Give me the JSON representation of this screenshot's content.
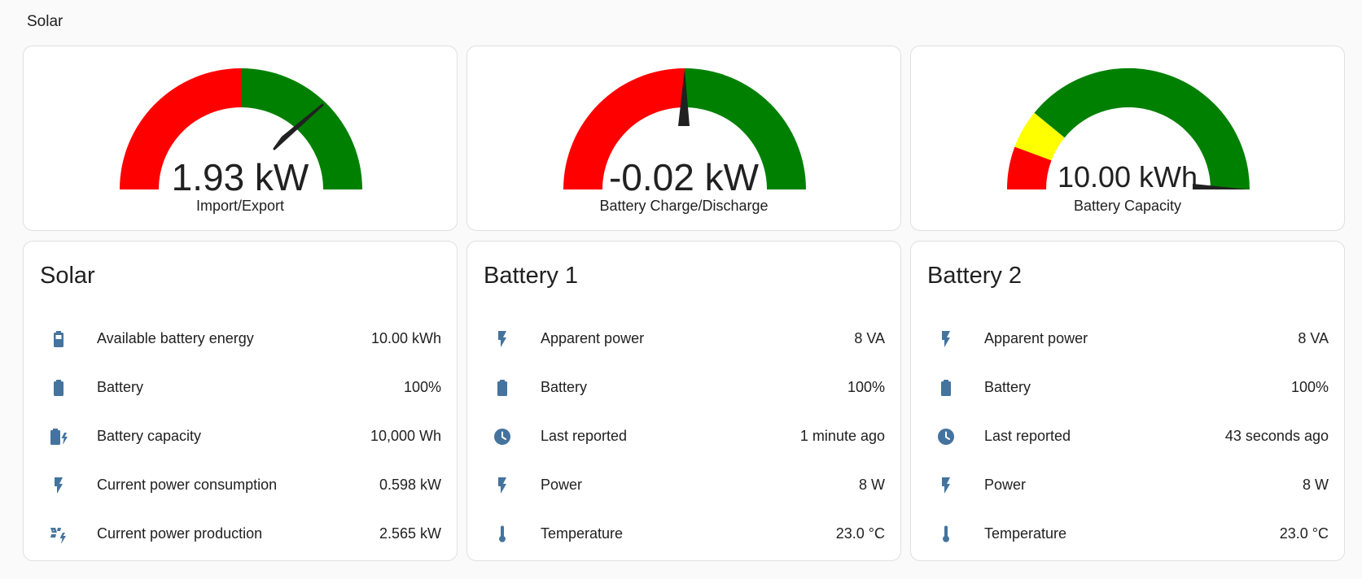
{
  "section": {
    "title": "Solar"
  },
  "gauges": [
    {
      "value_text": "1.93 kW",
      "name": "Import/Export",
      "min": -5,
      "max": 5,
      "value": 1.93
    },
    {
      "value_text": "-0.02 kW",
      "name": "Battery Charge/Discharge",
      "min": -5,
      "max": 5,
      "value": -0.02
    },
    {
      "value_text": "10.00 kWh",
      "name": "Battery Capacity",
      "min": 0,
      "max": 10,
      "value": 10.0
    }
  ],
  "colors": {
    "red": "#ff0000",
    "green": "#008000",
    "yellow": "#ffff00",
    "icon": "#44739e",
    "needle": "#212121"
  },
  "cards": [
    {
      "title": "Solar",
      "rows": [
        {
          "icon": "battery-level-icon",
          "label": "Available battery energy",
          "value": "10.00 kWh"
        },
        {
          "icon": "battery-icon",
          "label": "Battery",
          "value": "100%"
        },
        {
          "icon": "battery-charging-icon",
          "label": "Battery capacity",
          "value": "10,000 Wh"
        },
        {
          "icon": "flash-icon",
          "label": "Current power consumption",
          "value": "0.598 kW"
        },
        {
          "icon": "solar-power-icon",
          "label": "Current power production",
          "value": "2.565 kW"
        }
      ]
    },
    {
      "title": "Battery 1",
      "rows": [
        {
          "icon": "flash-icon",
          "label": "Apparent power",
          "value": "8 VA"
        },
        {
          "icon": "battery-icon",
          "label": "Battery",
          "value": "100%"
        },
        {
          "icon": "clock-icon",
          "label": "Last reported",
          "value": "1 minute ago"
        },
        {
          "icon": "flash-icon",
          "label": "Power",
          "value": "8 W"
        },
        {
          "icon": "thermometer-icon",
          "label": "Temperature",
          "value": "23.0 °C"
        }
      ]
    },
    {
      "title": "Battery 2",
      "rows": [
        {
          "icon": "flash-icon",
          "label": "Apparent power",
          "value": "8 VA"
        },
        {
          "icon": "battery-icon",
          "label": "Battery",
          "value": "100%"
        },
        {
          "icon": "clock-icon",
          "label": "Last reported",
          "value": "43 seconds ago"
        },
        {
          "icon": "flash-icon",
          "label": "Power",
          "value": "8 W"
        },
        {
          "icon": "thermometer-icon",
          "label": "Temperature",
          "value": "23.0 °C"
        }
      ]
    }
  ]
}
